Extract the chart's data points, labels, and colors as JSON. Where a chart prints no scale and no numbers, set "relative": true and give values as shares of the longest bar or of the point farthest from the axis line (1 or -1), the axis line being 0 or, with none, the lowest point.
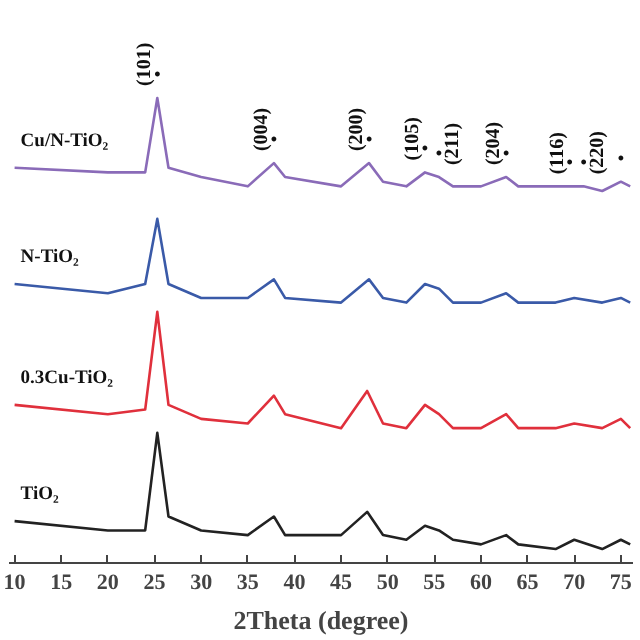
{
  "chart_data": {
    "type": "line",
    "relative": true,
    "xlabel": "2Theta (degree)",
    "xlim": [
      9.4,
      76.3
    ],
    "xticks": [
      10,
      15,
      20,
      25,
      30,
      35,
      40,
      45,
      50,
      55,
      60,
      65,
      70,
      75
    ],
    "legend": false,
    "grid": false,
    "series": [
      {
        "name": "Cu/N-TiO₂",
        "color": "#8a6bb8",
        "x": [
          10,
          20,
          24,
          25.3,
          26.5,
          30,
          35,
          37.8,
          39,
          45,
          48,
          49.5,
          52,
          54,
          55.5,
          57,
          60,
          62.7,
          64,
          68,
          69.5,
          71,
          73,
          75,
          76
        ],
        "values": [
          0.85,
          0.84,
          0.84,
          1,
          0.85,
          0.83,
          0.81,
          0.86,
          0.83,
          0.81,
          0.86,
          0.82,
          0.81,
          0.84,
          0.83,
          0.81,
          0.81,
          0.83,
          0.81,
          0.81,
          0.81,
          0.81,
          0.8,
          0.82,
          0.81
        ]
      },
      {
        "name": "N-TiO₂",
        "color": "#3a5aa8",
        "x": [
          10,
          20,
          24,
          25.3,
          26.5,
          30,
          35,
          37.8,
          39,
          45,
          48,
          49.5,
          52,
          54,
          55.5,
          57,
          60,
          62.7,
          64,
          68,
          70,
          73,
          75,
          76
        ],
        "values": [
          0.6,
          0.58,
          0.6,
          0.74,
          0.6,
          0.57,
          0.57,
          0.61,
          0.57,
          0.56,
          0.61,
          0.57,
          0.56,
          0.6,
          0.59,
          0.56,
          0.56,
          0.58,
          0.56,
          0.56,
          0.57,
          0.56,
          0.57,
          0.56
        ]
      },
      {
        "name": "0.3Cu-TiO₂",
        "color": "#e0303c",
        "x": [
          10,
          20,
          24,
          25.3,
          26.5,
          30,
          35,
          37.8,
          39,
          45,
          47.8,
          49.5,
          52,
          54,
          55.5,
          57,
          60,
          62.7,
          64,
          68,
          70,
          73,
          75,
          76
        ],
        "values": [
          0.34,
          0.32,
          0.33,
          0.54,
          0.34,
          0.31,
          0.3,
          0.36,
          0.32,
          0.29,
          0.37,
          0.3,
          0.29,
          0.34,
          0.32,
          0.29,
          0.29,
          0.32,
          0.29,
          0.29,
          0.3,
          0.29,
          0.31,
          0.29
        ]
      },
      {
        "name": "TiO₂",
        "color": "#222222",
        "x": [
          10,
          20,
          24,
          25.3,
          26.5,
          30,
          35,
          37.8,
          39,
          45,
          47.8,
          49.5,
          52,
          54,
          55.5,
          57,
          60,
          62.7,
          64,
          68,
          70,
          73,
          75,
          76
        ],
        "values": [
          0.09,
          0.07,
          0.07,
          0.28,
          0.1,
          0.07,
          0.06,
          0.1,
          0.06,
          0.06,
          0.11,
          0.06,
          0.05,
          0.08,
          0.07,
          0.05,
          0.04,
          0.06,
          0.04,
          0.03,
          0.05,
          0.03,
          0.05,
          0.04
        ]
      }
    ],
    "annotations": [
      {
        "text": "(101)",
        "x": 25.3,
        "y": 1
      },
      {
        "text": "(004)",
        "x": 37.8,
        "y": 0.86
      },
      {
        "text": "(200)",
        "x": 48,
        "y": 0.86
      },
      {
        "text": "(105)",
        "x": 54,
        "y": 0.84
      },
      {
        "text": "(211)",
        "x": 55.5,
        "y": 0.83
      },
      {
        "text": "(204)",
        "x": 62.7,
        "y": 0.83
      },
      {
        "text": "(116)",
        "x": 69.5,
        "y": 0.81
      },
      {
        "text": "(220)",
        "x": 71,
        "y": 0.81
      },
      {
        "text": "•",
        "x": 25.3,
        "y": 1
      },
      {
        "text": "•",
        "x": 37.8,
        "y": 0.86
      },
      {
        "text": "•",
        "x": 48,
        "y": 0.86
      },
      {
        "text": "•",
        "x": 54,
        "y": 0.84
      },
      {
        "text": "•",
        "x": 55.5,
        "y": 0.83
      },
      {
        "text": "•",
        "x": 62.7,
        "y": 0.83
      },
      {
        "text": "•",
        "x": 69.5,
        "y": 0.81
      },
      {
        "text": "•",
        "x": 71,
        "y": 0.81
      },
      {
        "text": "•",
        "x": 75,
        "y": 0.82
      }
    ]
  }
}
